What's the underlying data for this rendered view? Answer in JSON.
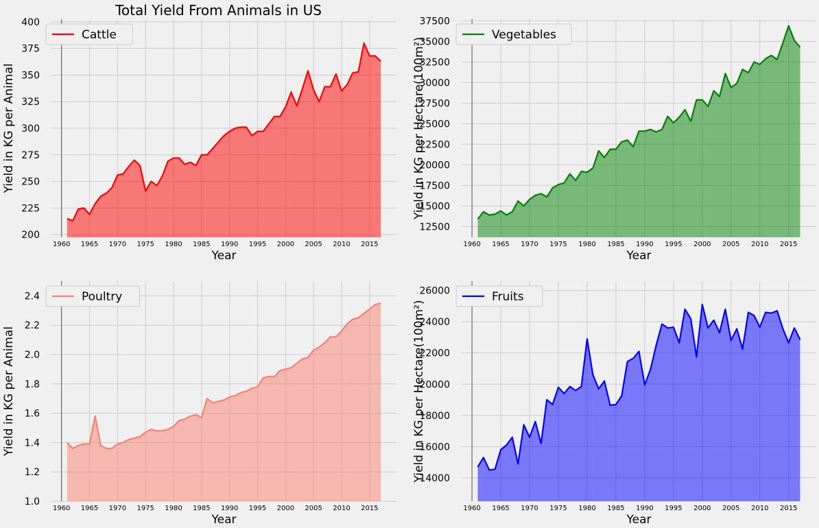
{
  "chart_data": [
    {
      "type": "area",
      "title": "Total Yield From Animals in US",
      "xlabel": "Year",
      "ylabel": "Yield in KG per Animal",
      "ylim": [
        197.5,
        402.5
      ],
      "xlim": [
        1958.2,
        2019.8
      ],
      "xticks": [
        1960,
        1965,
        1970,
        1975,
        1980,
        1985,
        1990,
        1995,
        2000,
        2005,
        2010,
        2015
      ],
      "yticks": [
        200,
        225,
        250,
        275,
        300,
        325,
        350,
        375,
        400
      ],
      "ytick_labels": [
        "200",
        "225",
        "250",
        "275",
        "300",
        "325",
        "350",
        "375",
        "400"
      ],
      "grid": true,
      "legend": "top-left",
      "area_base": 197.5,
      "line_color": "#ff0000",
      "fill_color": "#ff0000",
      "fill_opacity": 0.5,
      "series": [
        {
          "name": "Cattle",
          "x_start": 1961,
          "values": [
            215,
            213,
            224,
            225,
            219,
            229,
            236,
            239,
            244,
            256,
            257,
            264,
            270,
            265,
            241,
            250,
            246,
            255,
            269,
            272,
            272,
            266,
            268,
            265,
            275,
            275,
            281,
            287,
            293,
            297,
            300,
            301,
            301,
            293,
            297,
            297,
            304,
            311,
            311,
            320,
            334,
            321,
            337,
            354,
            336,
            325,
            339,
            339,
            351,
            335,
            341,
            352,
            353,
            380,
            368,
            368,
            363
          ]
        }
      ]
    },
    {
      "type": "area",
      "title": "",
      "xlabel": "Year",
      "ylabel": "Yield in KG per Hectare(100m²)",
      "ylim": [
        11200,
        37700
      ],
      "xlim": [
        1958.2,
        2019.8
      ],
      "xticks": [
        1960,
        1965,
        1970,
        1975,
        1980,
        1985,
        1990,
        1995,
        2000,
        2005,
        2010,
        2015
      ],
      "yticks": [
        12500,
        15000,
        17500,
        20000,
        22500,
        25000,
        27500,
        30000,
        32500,
        35000,
        37500
      ],
      "ytick_labels": [
        "12500",
        "15000",
        "17500",
        "20000",
        "22500",
        "25000",
        "27500",
        "30000",
        "32500",
        "35000",
        "37500"
      ],
      "grid": true,
      "legend": "top-left",
      "area_base": 11200,
      "line_color": "#008000",
      "fill_color": "#008000",
      "fill_opacity": 0.5,
      "series": [
        {
          "name": "Vegetables",
          "x_start": 1961,
          "values": [
            13400,
            14300,
            13900,
            14000,
            14400,
            13900,
            14300,
            15600,
            15000,
            15800,
            16300,
            16500,
            16100,
            17200,
            17600,
            17800,
            18900,
            18100,
            19200,
            19100,
            19600,
            21700,
            20900,
            21900,
            21900,
            22800,
            23000,
            22200,
            24100,
            24100,
            24300,
            24000,
            24300,
            25900,
            25100,
            25800,
            26700,
            25300,
            27900,
            27900,
            27100,
            29000,
            28300,
            31100,
            29400,
            29900,
            31600,
            31200,
            32500,
            32200,
            32900,
            33300,
            32800,
            34800,
            36900,
            35100,
            34300
          ]
        }
      ]
    },
    {
      "type": "area",
      "title": "",
      "xlabel": "Year",
      "ylabel": "Yield in KG per Animal",
      "ylim": [
        1.0,
        2.5
      ],
      "xlim": [
        1958.2,
        2019.8
      ],
      "xticks": [
        1960,
        1965,
        1970,
        1975,
        1980,
        1985,
        1990,
        1995,
        2000,
        2005,
        2010,
        2015
      ],
      "yticks": [
        1.0,
        1.2,
        1.4,
        1.6,
        1.8,
        2.0,
        2.2,
        2.4
      ],
      "ytick_labels": [
        "1.0",
        "1.2",
        "1.4",
        "1.6",
        "1.8",
        "2.0",
        "2.2",
        "2.4"
      ],
      "grid": true,
      "legend": "top-left",
      "area_base": 1.0,
      "line_color": "#fa8072",
      "fill_color": "#fa8072",
      "fill_opacity": 0.5,
      "series": [
        {
          "name": "Poultry",
          "x_start": 1961,
          "values": [
            1.4,
            1.36,
            1.38,
            1.39,
            1.39,
            1.58,
            1.38,
            1.36,
            1.36,
            1.39,
            1.4,
            1.42,
            1.43,
            1.44,
            1.47,
            1.49,
            1.48,
            1.48,
            1.49,
            1.51,
            1.55,
            1.56,
            1.58,
            1.59,
            1.57,
            1.7,
            1.67,
            1.68,
            1.69,
            1.71,
            1.72,
            1.74,
            1.75,
            1.77,
            1.78,
            1.84,
            1.85,
            1.85,
            1.89,
            1.9,
            1.91,
            1.94,
            1.97,
            1.98,
            2.03,
            2.05,
            2.08,
            2.12,
            2.12,
            2.16,
            2.21,
            2.24,
            2.25,
            2.28,
            2.31,
            2.34,
            2.35
          ]
        }
      ]
    },
    {
      "type": "area",
      "title": "",
      "xlabel": "Year",
      "ylabel": "Yield in KG per Hectare(100m²)",
      "ylim": [
        12500,
        26600
      ],
      "xlim": [
        1958.2,
        2019.8
      ],
      "xticks": [
        1960,
        1965,
        1970,
        1975,
        1980,
        1985,
        1990,
        1995,
        2000,
        2005,
        2010,
        2015
      ],
      "yticks": [
        14000,
        16000,
        18000,
        20000,
        22000,
        24000,
        26000
      ],
      "ytick_labels": [
        "14000",
        "16000",
        "18000",
        "20000",
        "22000",
        "24000",
        "26000"
      ],
      "grid": true,
      "legend": "top-left",
      "area_base": 12500,
      "line_color": "#0000ff",
      "fill_color": "#0000ff",
      "fill_opacity": 0.5,
      "series": [
        {
          "name": "Fruits",
          "x_start": 1961,
          "values": [
            14700,
            15300,
            14500,
            14550,
            15800,
            16100,
            16600,
            14900,
            17400,
            16600,
            17600,
            16200,
            19000,
            18700,
            19800,
            19400,
            19850,
            19600,
            19850,
            22900,
            20600,
            19700,
            20200,
            18650,
            18700,
            19250,
            21450,
            21650,
            22100,
            19950,
            20950,
            22500,
            23850,
            23600,
            23650,
            22650,
            24800,
            24200,
            21750,
            25100,
            23600,
            24100,
            23300,
            24800,
            22800,
            23550,
            22250,
            24600,
            24400,
            23650,
            24600,
            24550,
            24700,
            23550,
            22650,
            23600,
            22850
          ]
        }
      ]
    }
  ]
}
